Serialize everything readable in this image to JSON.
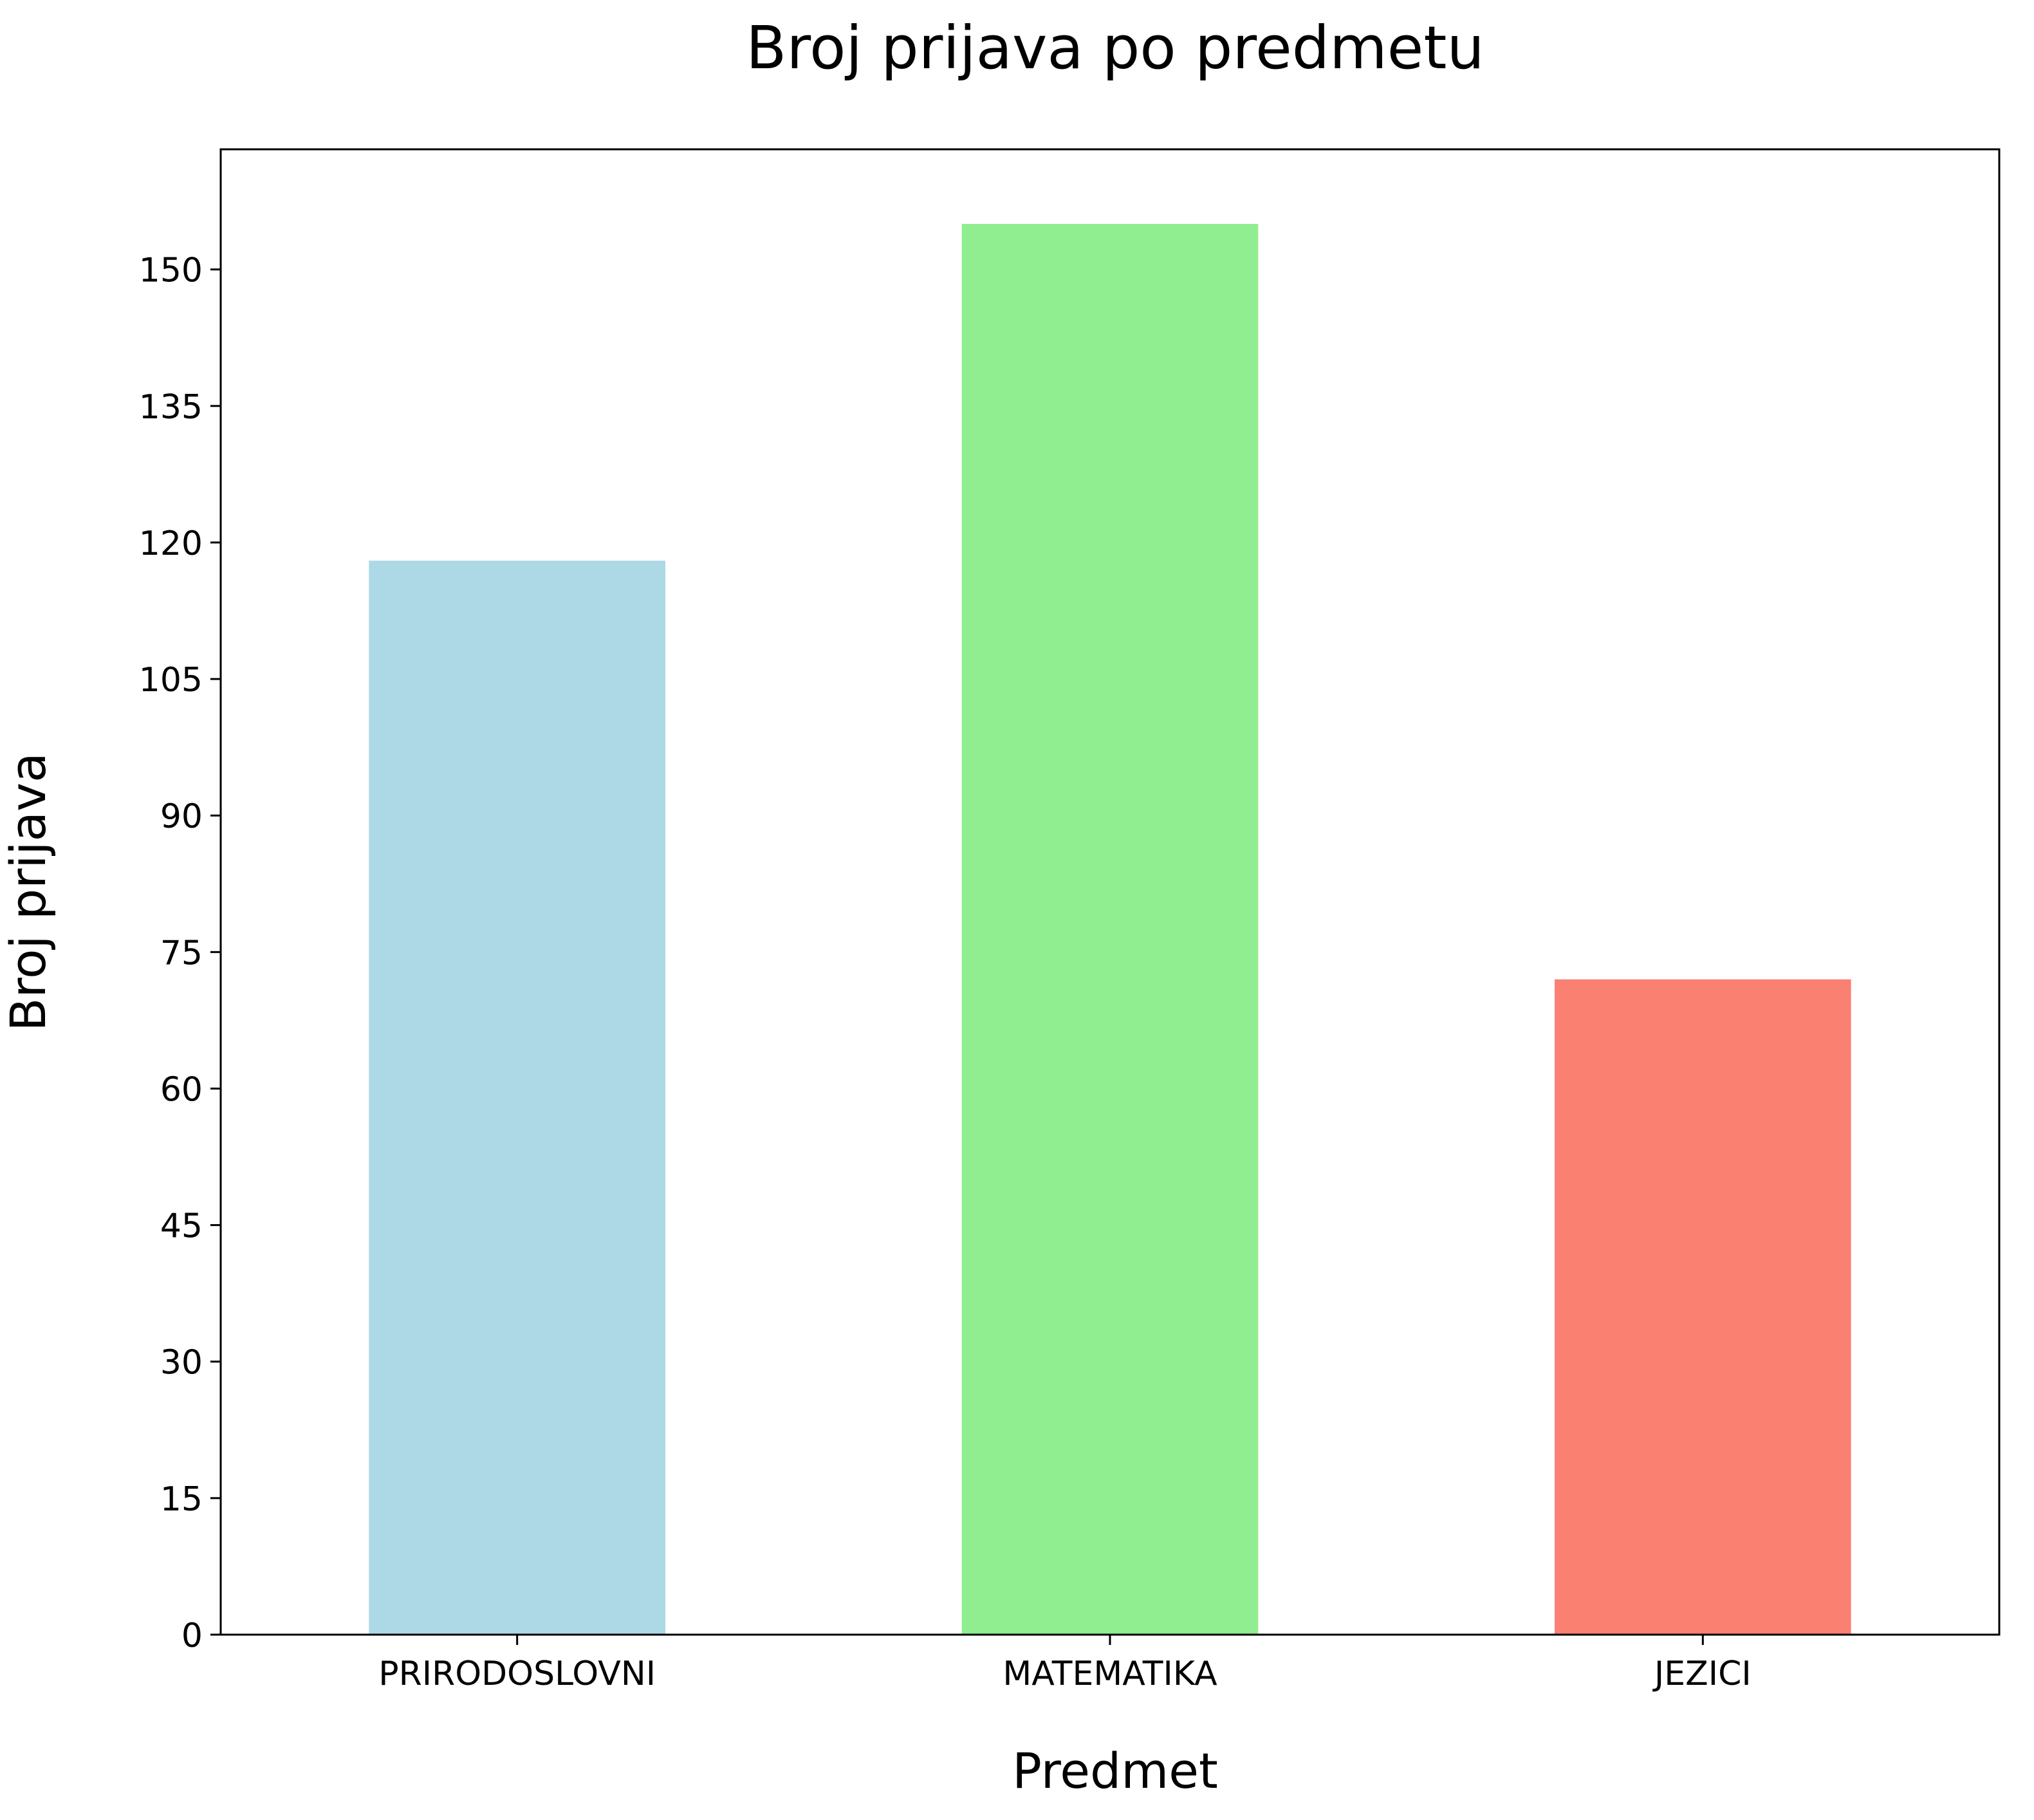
{
  "chart_data": {
    "type": "bar",
    "title": "Broj prijava po predmetu",
    "xlabel": "Predmet",
    "ylabel": "Broj prijava",
    "categories": [
      "PRIRODOSLOVNI",
      "MATEMATIKA",
      "JEZICI"
    ],
    "values": [
      118,
      155,
      72
    ],
    "colors": [
      "#add8e6",
      "#90ee90",
      "#fa8072"
    ],
    "ylim": [
      0,
      163.2
    ],
    "yticks": [
      0,
      15,
      30,
      45,
      60,
      75,
      90,
      105,
      120,
      135,
      150
    ],
    "grid": false,
    "legend": "none"
  }
}
